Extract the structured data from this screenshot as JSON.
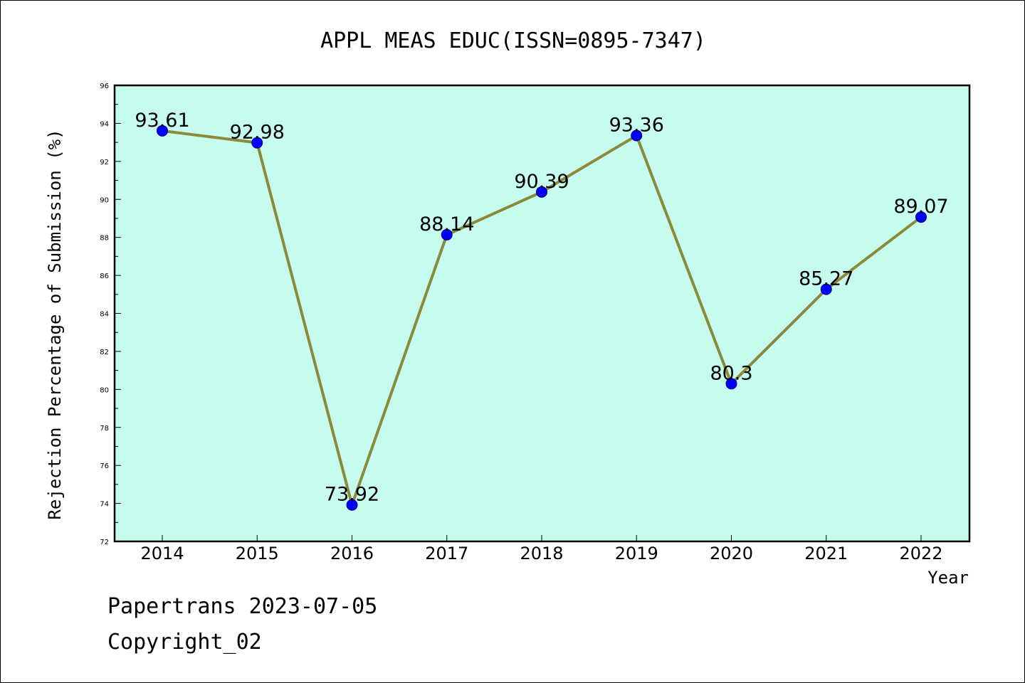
{
  "chart_data": {
    "type": "line",
    "title": "APPL MEAS EDUC(ISSN=0895-7347)",
    "xlabel": "Year",
    "ylabel": "Rejection Percentage of Submission (%)",
    "categories": [
      "2014",
      "2015",
      "2016",
      "2017",
      "2018",
      "2019",
      "2020",
      "2021",
      "2022"
    ],
    "values": [
      93.61,
      92.98,
      73.92,
      88.14,
      90.39,
      93.36,
      80.3,
      85.27,
      89.07
    ],
    "data_labels": [
      "93.61",
      "92.98",
      "73.92",
      "88.14",
      "90.39",
      "93.36",
      "80.3",
      "85.27",
      "89.07"
    ],
    "ylim": [
      72,
      96
    ],
    "y_ticks": [
      72,
      74,
      76,
      78,
      80,
      82,
      84,
      86,
      88,
      90,
      92,
      94,
      96
    ],
    "grid": false,
    "colors": {
      "plot_background": "#c6fcee",
      "line": "#8c8a3a",
      "marker": "#0000ff",
      "marker_edge": "#00008b"
    }
  },
  "footer": {
    "line1": "Papertrans 2023-07-05",
    "line2": "Copyright_02"
  }
}
